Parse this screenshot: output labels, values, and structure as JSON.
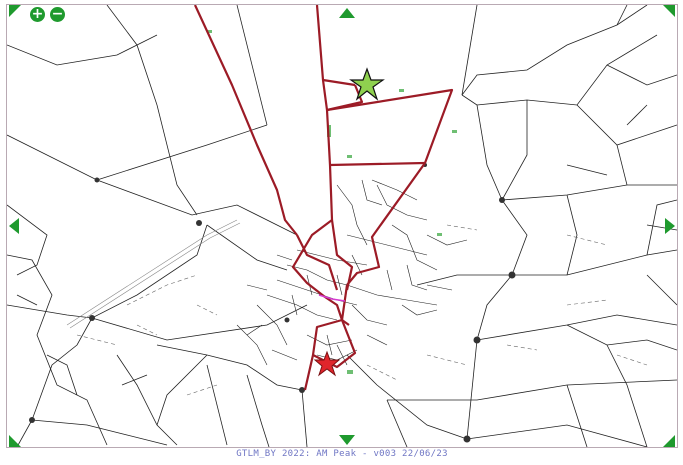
{
  "controls": {
    "zoom_in": "+",
    "zoom_out": "−"
  },
  "footer": {
    "caption": "GTLM_BY 2022: AM Peak - v003  22/06/23"
  },
  "colors": {
    "route": "#9c1b26",
    "network": "#111111",
    "control_green": "#1f9a2e",
    "origin_star": "#8fd14f",
    "destination_star": "#e0252b",
    "caption": "#6f76c4"
  },
  "markers": [
    {
      "name": "origin-star",
      "color": "green"
    },
    {
      "name": "destination-star",
      "color": "red"
    }
  ]
}
